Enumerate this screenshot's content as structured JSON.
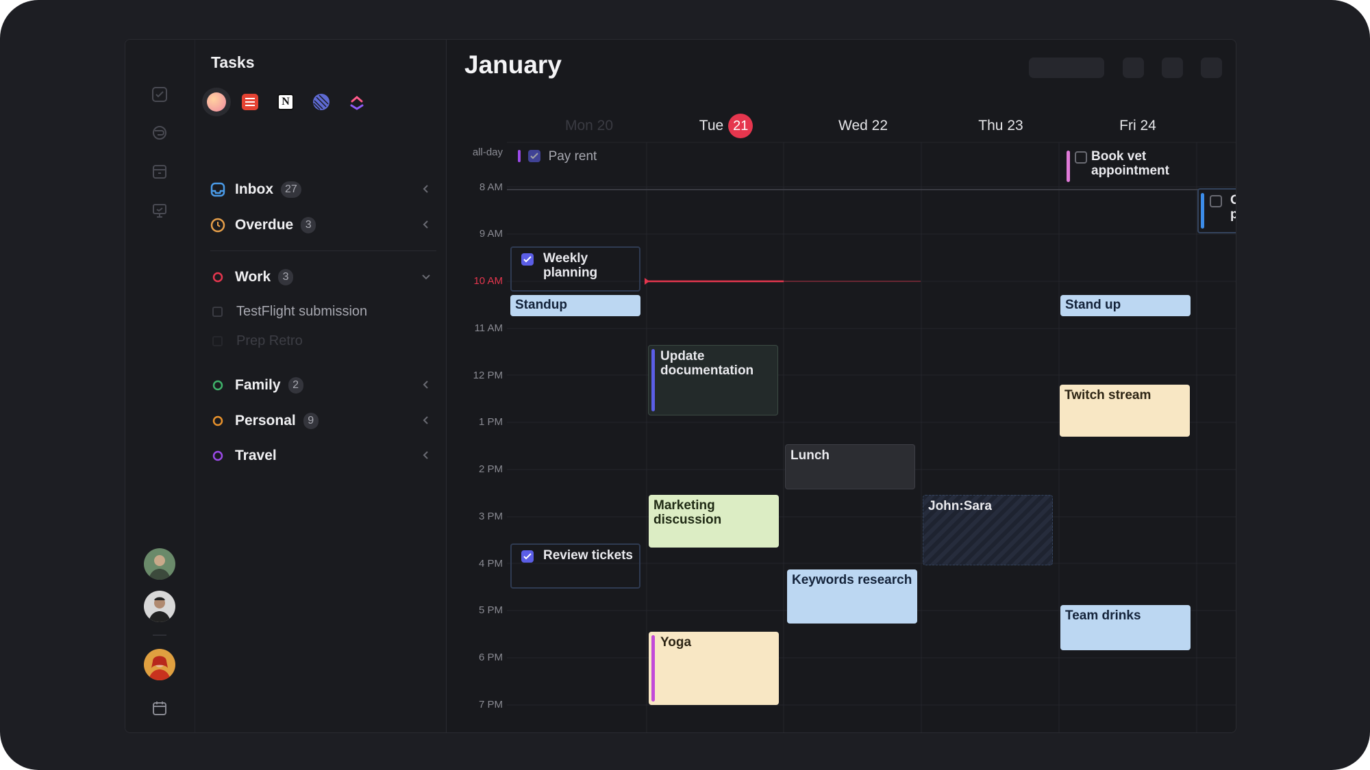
{
  "sidebar": {
    "title": "Tasks",
    "sources": [
      "avatar-source-icon",
      "todoist-icon",
      "notion-icon",
      "linear-icon",
      "clickup-icon"
    ],
    "lists": [
      {
        "label": "Inbox",
        "count": "27",
        "color": "#4a9be8"
      },
      {
        "label": "Overdue",
        "count": "3",
        "color": "#e8a04a"
      },
      {
        "label": "Work",
        "count": "3",
        "color": "#e5364e"
      },
      {
        "label": "Family",
        "count": "2",
        "color": "#3fb36a"
      },
      {
        "label": "Personal",
        "count": "9",
        "color": "#e8922c"
      },
      {
        "label": "Travel",
        "label_color": "#f0f0f2",
        "count": "",
        "color": "#9b4ae8"
      }
    ],
    "work_tasks": [
      {
        "label": "TestFlight submission"
      },
      {
        "label": "Prep Retro"
      }
    ]
  },
  "calendar": {
    "month": "January",
    "days": [
      {
        "label": "Mon 20"
      },
      {
        "label": "Tue",
        "today_number": "21"
      },
      {
        "label": "Wed 22"
      },
      {
        "label": "Thu 23"
      },
      {
        "label": "Fri 24"
      }
    ],
    "allday_label": "all-day",
    "hours": [
      "8 AM",
      "9 AM",
      "10 AM",
      "11 AM",
      "12 PM",
      "1 PM",
      "2 PM",
      "3 PM",
      "4 PM",
      "5 PM",
      "6 PM",
      "7 PM"
    ],
    "events": {
      "pay_rent": "Pay rent",
      "book_vet": "Book vet appointment",
      "onboarding": "Onboarding proposal",
      "weekly_planning": "Weekly planning",
      "standup_mon": "Standup",
      "standup_fri": "Stand up",
      "update_docs": "Update documentation",
      "twitch": "Twitch stream",
      "lunch": "Lunch",
      "marketing": "Marketing discussion",
      "john_sara": "John:Sara",
      "review_tickets": "Review tickets",
      "keywords": "Keywords research",
      "team_drinks": "Team drinks",
      "yoga": "Yoga"
    },
    "colors": {
      "accent_today": "#e5364e",
      "checkbox": "#5b5ee6"
    }
  }
}
